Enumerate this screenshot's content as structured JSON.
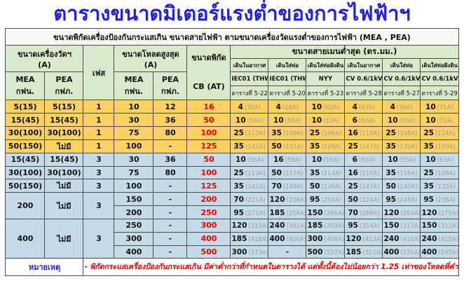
{
  "title": "ตารางขนาดมิเตอร์แรงต่ำของการไฟฟ้าฯ",
  "subtitle": "ขนาดพิกัดเครื่องป้องกันกระแสเกิน ขนาดสายไฟฟ้า ตามขนาดเครื่องวัดแรงต่ำของการไฟฟ้า (MEA , PEA)",
  "colors": {
    "title_text": "#2222dd",
    "header_bg": "#d9e9cc",
    "yellow_row_bg": "#fad162",
    "blue_row_bg": "#c6dbe9",
    "cb_text": "#ee0000",
    "amp_text": "#9c9c9c",
    "note_text": "#ee0000",
    "border": "#4d4d4d"
  },
  "header": {
    "meter_size": "ขนาดเครื่องวัดฯ",
    "meter_size_unit": "(A)",
    "phase": "เฟส",
    "max_load": "ขนาดโหลดสูงสุด",
    "max_load_unit": "(A)",
    "cb_line1": "ขนาดพิกัด",
    "cb_line2": "CB (AT)",
    "main_cable": "ขนาดสายเมนต่ำสุด (ตร.มม.)",
    "mea": "MEA",
    "mea_sub": "กฟน.",
    "pea": "PEA",
    "pea_sub": "กฟภ.",
    "cable_cols": [
      {
        "install": "เดินในอากาศ",
        "type": "IEC01 (THW)",
        "table": "ตารางที่ 5-22"
      },
      {
        "install": "เดินใส่ท่อ",
        "type": "IEC01 (THW)",
        "table": "ตารางที่ 5-20"
      },
      {
        "install": "เดินใส่ท่อฝังดิน",
        "type": "NYY",
        "table": "ตารางที่ 5-23"
      },
      {
        "install": "เดินในอากาศ",
        "type": "CV 0.6/1kV",
        "table": "ตารางที่ 5-28"
      },
      {
        "install": "เดินใส่ท่อ",
        "type": "CV 0.6/1kV",
        "table": "ตารางที่ 5-27"
      },
      {
        "install": "เดินใส่ท่อฝังดิน",
        "type": "CV 0.6/1kV",
        "table": "ตารางที่ 5-29"
      }
    ]
  },
  "rows": [
    {
      "group": "yellow",
      "lead": {
        "mea": "5(15)",
        "pea": "5(15)",
        "phase": "1",
        "span": 1
      },
      "load_mea": "10",
      "load_pea": "12",
      "cb": "16",
      "cables": [
        [
          "4",
          "(30A)"
        ],
        [
          "4",
          "(28A)"
        ],
        [
          "10",
          "(62A)"
        ],
        [
          "4",
          "(47A)"
        ],
        [
          "4",
          "(36A)"
        ],
        [
          "10",
          "(71A)"
        ]
      ]
    },
    {
      "group": "yellow",
      "lead": {
        "mea": "15(45)",
        "pea": "15(45)",
        "phase": "1",
        "span": 1
      },
      "load_mea": "30",
      "load_pea": "36",
      "cb": "50",
      "cables": [
        [
          "10",
          "(56A)"
        ],
        [
          "10",
          "(50A)"
        ],
        [
          "10",
          "(62A)"
        ],
        [
          "6",
          "(60A)"
        ],
        [
          "10",
          "(63A)"
        ],
        [
          "10",
          "(71A)"
        ]
      ]
    },
    {
      "group": "yellow",
      "lead": {
        "mea": "30(100)",
        "pea": "30(100)",
        "phase": "1",
        "span": 1
      },
      "load_mea": "75",
      "load_pea": "80",
      "cb": "100",
      "cables": [
        [
          "25",
          "(113A)"
        ],
        [
          "35",
          "(109A)"
        ],
        [
          "25",
          "(106A)"
        ],
        [
          "16",
          "(110A)"
        ],
        [
          "25",
          "(108A)"
        ],
        [
          "25",
          "(124A)"
        ]
      ]
    },
    {
      "group": "yellow",
      "lead": {
        "mea": "50(150)",
        "pea": "ไม่มี",
        "phase": "1",
        "span": 1
      },
      "load_mea": "100",
      "load_pea": "-",
      "cb": "125",
      "cables": [
        [
          "35",
          "(141A)"
        ],
        [
          "50",
          "(131A)"
        ],
        [
          "35",
          "(129A)"
        ],
        [
          "25",
          "(147A)"
        ],
        [
          "35",
          "(133A)"
        ],
        [
          "35",
          "(150A)"
        ]
      ]
    },
    {
      "group": "blue",
      "lead": {
        "mea": "15(45)",
        "pea": "15(45)",
        "phase": "3",
        "span": 1
      },
      "load_mea": "30",
      "load_pea": "36",
      "cb": "50",
      "cables": [
        [
          "10",
          "(56A)"
        ],
        [
          "16",
          "(59A)"
        ],
        [
          "10",
          "(55A)"
        ],
        [
          "6",
          "(60A)"
        ],
        [
          "10",
          "(55A)"
        ],
        [
          "10",
          "(63A)"
        ]
      ]
    },
    {
      "group": "blue",
      "lead": {
        "mea": "30(100)",
        "pea": "30(100)",
        "phase": "3",
        "span": 1
      },
      "load_mea": "75",
      "load_pea": "80",
      "cb": "100",
      "cables": [
        [
          "25",
          "(113A)"
        ],
        [
          "50",
          "(117A)"
        ],
        [
          "35",
          "(114A)"
        ],
        [
          "16",
          "(110A)"
        ],
        [
          "35",
          "(116A)"
        ],
        [
          "25",
          "(109A)"
        ]
      ]
    },
    {
      "group": "blue",
      "lead": {
        "mea": "50(150)",
        "pea": "ไม่มี",
        "phase": "3",
        "span": 1
      },
      "load_mea": "100",
      "load_pea": "-",
      "cb": "125",
      "cables": [
        [
          "35",
          "(141A)"
        ],
        [
          "70",
          "(149A)"
        ],
        [
          "50",
          "(136A)"
        ],
        [
          "25",
          "(147A)"
        ],
        [
          "50",
          "(140A)"
        ],
        [
          "35",
          "(132A)"
        ]
      ]
    },
    {
      "group": "blue",
      "lead": {
        "mea": "200",
        "pea": "ไม่มี",
        "phase": "3",
        "span": 2
      },
      "load_mea": "150",
      "load_pea": "-",
      "cb": "200",
      "cables": [
        [
          "70",
          "(221A)"
        ],
        [
          "120",
          "(208A)"
        ],
        [
          "95",
          "(204A)"
        ],
        [
          "50",
          "(224A)"
        ],
        [
          "95",
          "(245A)"
        ],
        [
          "95",
          "(238A)"
        ]
      ]
    },
    {
      "group": "blue",
      "lead": null,
      "load_mea": "200",
      "load_pea": "-",
      "cb": "250",
      "cables": [
        [
          "95",
          "(271A)"
        ],
        [
          "185",
          "(258A)"
        ],
        [
          "150",
          "(266A)"
        ],
        [
          "70",
          "(289A)"
        ],
        [
          "120",
          "(284A)"
        ],
        [
          "120",
          "(275A)"
        ]
      ]
    },
    {
      "group": "blue",
      "lead": {
        "mea": "400",
        "pea": "ไม่มี",
        "phase": "3",
        "span": 3
      },
      "load_mea": "250",
      "load_pea": "-",
      "cb": "300",
      "cables": [
        [
          "120",
          "(315A)"
        ],
        [
          "240",
          "(301A)"
        ],
        [
          "185",
          "(303A)"
        ],
        [
          "95",
          "(354A)"
        ],
        [
          "150",
          "(311A)"
        ],
        [
          "150",
          "(312A)"
        ]
      ]
    },
    {
      "group": "blue",
      "lead": null,
      "load_mea": "300",
      "load_pea": "-",
      "cb": "400",
      "cables": [
        [
          "185",
          "(418A)"
        ],
        [
          "400",
          "(406A)"
        ],
        [
          "300",
          "(404A)"
        ],
        [
          "120",
          "(413A)"
        ],
        [
          "240",
          "(410A)"
        ],
        [
          "240",
          "(418A)"
        ]
      ]
    },
    {
      "group": "blue",
      "lead": null,
      "load_mea": "400",
      "load_pea": "-",
      "cb": "500",
      "cables": [
        [
          "300",
          "(573A)"
        ],
        [
          "-",
          ""
        ],
        [
          "500",
          "(527A)"
        ],
        [
          "185",
          "(551A)"
        ],
        [
          "400",
          "(531A)"
        ],
        [
          "400",
          "(545A)"
        ]
      ]
    }
  ],
  "note": {
    "label": "หมายเหตุ",
    "text": "- พิกัดกระแสเครื่องป้องกันกระแสเกิน มีค่าต่ำกว่าที่กำหนดในตารางได้ แต่ทั้งนี้ต้องไม่น้อยกว่า 1.25 เท่าของโหลดที่คำนวณได้"
  }
}
